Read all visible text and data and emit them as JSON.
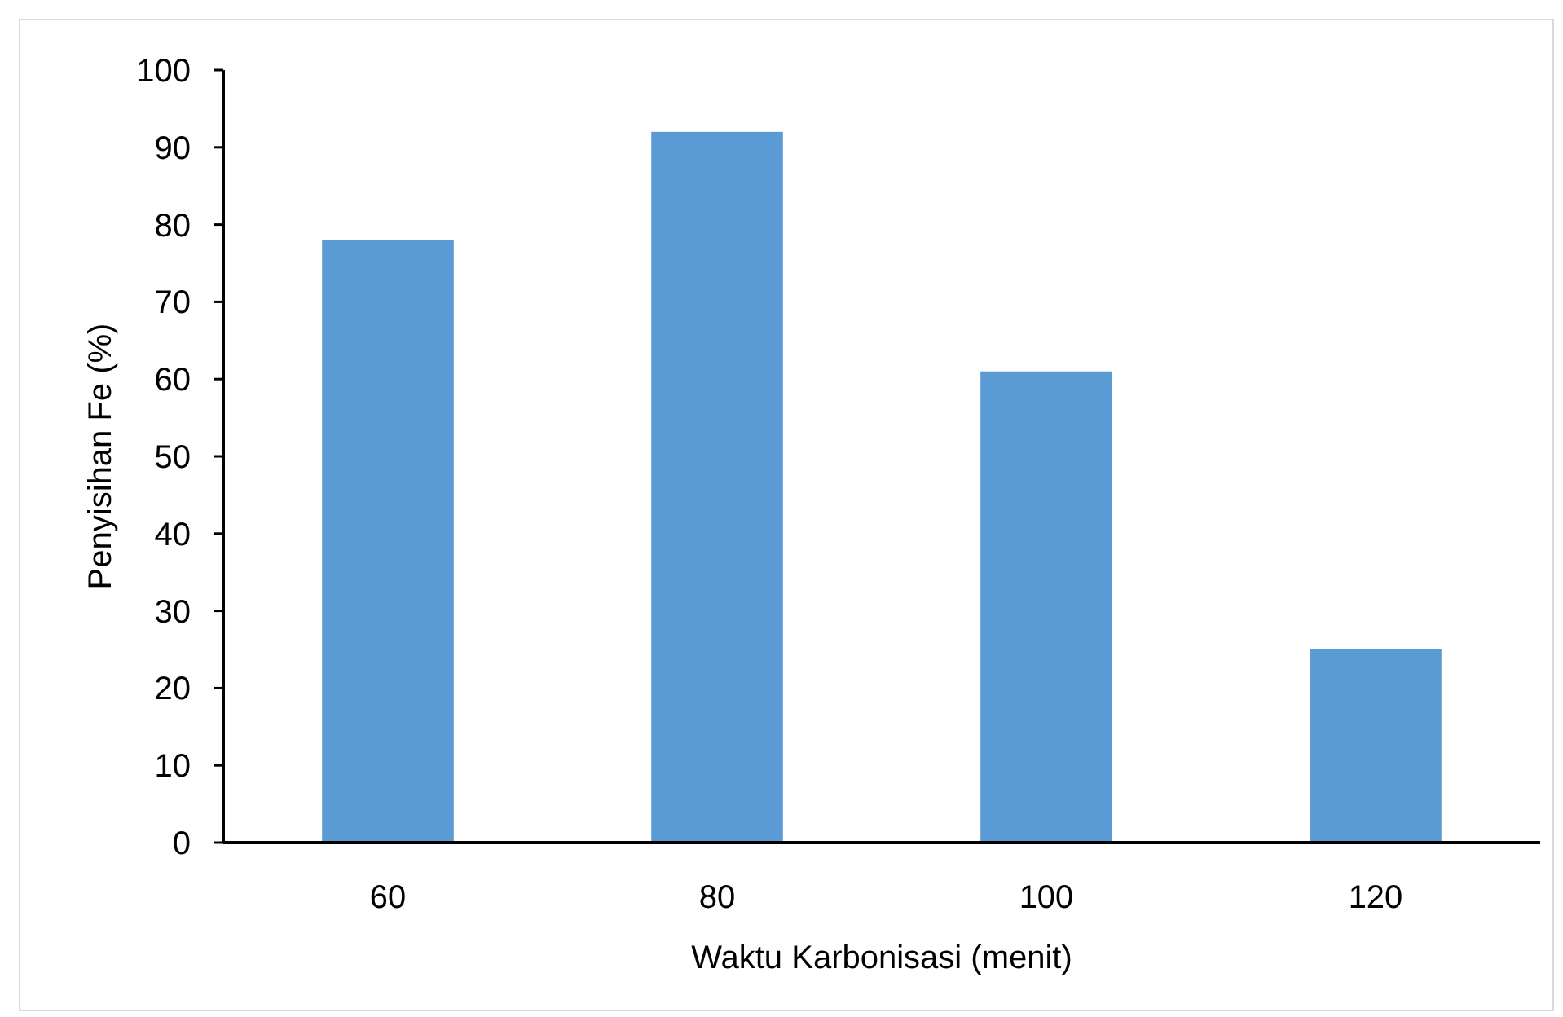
{
  "chart_data": {
    "type": "bar",
    "xlabel": "Waktu Karbonisasi (menit)",
    "ylabel": "Penyisihan Fe (%)",
    "categories": [
      "60",
      "80",
      "100",
      "120"
    ],
    "values": [
      78,
      92,
      61,
      25
    ],
    "color": "#5b9bd5",
    "ylim": [
      0,
      100
    ],
    "yticks": [
      0,
      10,
      20,
      30,
      40,
      50,
      60,
      70,
      80,
      90,
      100
    ],
    "grid": false
  }
}
